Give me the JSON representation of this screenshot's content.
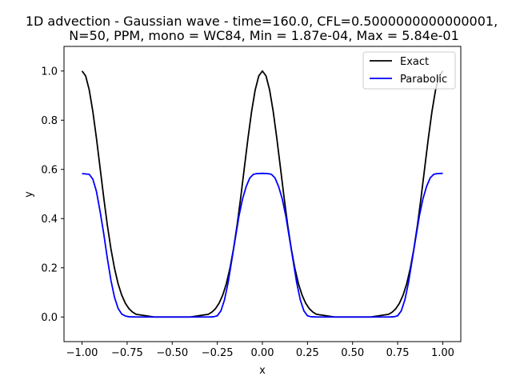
{
  "chart_data": {
    "type": "line",
    "title": "1D advection - Gaussian wave - time=160.0, CFL=0.5000000000000001,\nN=50, PPM, mono = WC84, Min = 1.87e-04, Max = 5.84e-01",
    "title_lines": [
      "1D advection - Gaussian wave - time=160.0, CFL=0.5000000000000001,",
      "N=50, PPM, mono = WC84, Min = 1.87e-04, Max = 5.84e-01"
    ],
    "xlabel": "x",
    "ylabel": "y",
    "xlim": [
      -1.1,
      1.1
    ],
    "ylim": [
      -0.1,
      1.1
    ],
    "xticks": [
      -1.0,
      -0.75,
      -0.5,
      -0.25,
      0.0,
      0.25,
      0.5,
      0.75,
      1.0
    ],
    "xtick_labels": [
      "−1.00",
      "−0.75",
      "−0.50",
      "−0.25",
      "0.00",
      "0.25",
      "0.50",
      "0.75",
      "1.00"
    ],
    "yticks": [
      0.0,
      0.2,
      0.4,
      0.6,
      0.8,
      1.0
    ],
    "ytick_labels": [
      "0.0",
      "0.2",
      "0.4",
      "0.6",
      "0.8",
      "1.0"
    ],
    "grid": false,
    "legend_position": "top-right",
    "series": [
      {
        "name": "Exact",
        "color": "#000000",
        "x": [
          -1.0,
          -0.98,
          -0.96,
          -0.94,
          -0.92,
          -0.9,
          -0.88,
          -0.86,
          -0.84,
          -0.82,
          -0.8,
          -0.78,
          -0.76,
          -0.74,
          -0.72,
          -0.7,
          -0.6,
          -0.5,
          -0.4,
          -0.3,
          -0.28,
          -0.26,
          -0.24,
          -0.22,
          -0.2,
          -0.18,
          -0.16,
          -0.14,
          -0.12,
          -0.1,
          -0.08,
          -0.06,
          -0.04,
          -0.02,
          0.0,
          0.02,
          0.04,
          0.06,
          0.08,
          0.1,
          0.12,
          0.14,
          0.16,
          0.18,
          0.2,
          0.22,
          0.24,
          0.26,
          0.28,
          0.3,
          0.4,
          0.5,
          0.6,
          0.7,
          0.72,
          0.74,
          0.76,
          0.78,
          0.8,
          0.82,
          0.84,
          0.86,
          0.88,
          0.9,
          0.92,
          0.94,
          0.96,
          0.98,
          1.0
        ],
        "y": [
          1.0,
          0.98,
          0.923,
          0.835,
          0.726,
          0.607,
          0.487,
          0.375,
          0.278,
          0.198,
          0.135,
          0.089,
          0.056,
          0.034,
          0.02,
          0.011,
          0.0,
          0.0,
          0.0,
          0.011,
          0.02,
          0.034,
          0.056,
          0.089,
          0.135,
          0.198,
          0.278,
          0.375,
          0.487,
          0.607,
          0.726,
          0.835,
          0.923,
          0.98,
          1.0,
          0.98,
          0.923,
          0.835,
          0.726,
          0.607,
          0.487,
          0.375,
          0.278,
          0.198,
          0.135,
          0.089,
          0.056,
          0.034,
          0.02,
          0.011,
          0.0,
          0.0,
          0.0,
          0.011,
          0.02,
          0.034,
          0.056,
          0.089,
          0.135,
          0.198,
          0.278,
          0.375,
          0.487,
          0.607,
          0.726,
          0.835,
          0.923,
          0.98,
          1.0
        ]
      },
      {
        "name": "Parabolic",
        "color": "#0000ff",
        "x": [
          -1.0,
          -0.96,
          -0.94,
          -0.92,
          -0.9,
          -0.88,
          -0.86,
          -0.84,
          -0.82,
          -0.8,
          -0.78,
          -0.76,
          -0.74,
          -0.7,
          -0.5,
          -0.3,
          -0.27,
          -0.25,
          -0.23,
          -0.21,
          -0.19,
          -0.17,
          -0.15,
          -0.13,
          -0.11,
          -0.09,
          -0.07,
          -0.05,
          -0.03,
          0.0,
          0.03,
          0.05,
          0.07,
          0.09,
          0.11,
          0.13,
          0.15,
          0.17,
          0.19,
          0.21,
          0.23,
          0.25,
          0.27,
          0.3,
          0.5,
          0.7,
          0.73,
          0.75,
          0.77,
          0.79,
          0.81,
          0.83,
          0.85,
          0.87,
          0.89,
          0.91,
          0.93,
          0.95,
          0.97,
          1.0
        ],
        "y": [
          0.583,
          0.58,
          0.56,
          0.51,
          0.43,
          0.34,
          0.24,
          0.15,
          0.08,
          0.035,
          0.012,
          0.004,
          0.001,
          0.0,
          0.0,
          0.0,
          0.001,
          0.005,
          0.025,
          0.07,
          0.14,
          0.23,
          0.32,
          0.41,
          0.48,
          0.53,
          0.565,
          0.58,
          0.583,
          0.584,
          0.583,
          0.58,
          0.565,
          0.53,
          0.48,
          0.41,
          0.32,
          0.23,
          0.14,
          0.07,
          0.025,
          0.005,
          0.001,
          0.0,
          0.0,
          0.0,
          0.001,
          0.005,
          0.025,
          0.07,
          0.14,
          0.23,
          0.32,
          0.41,
          0.48,
          0.53,
          0.565,
          0.58,
          0.583,
          0.584
        ]
      }
    ]
  }
}
